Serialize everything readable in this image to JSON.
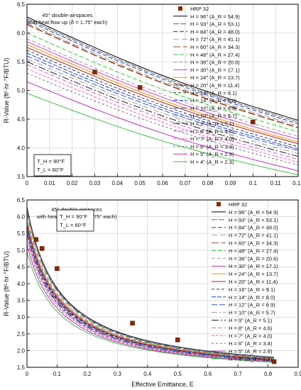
{
  "chart_data": [
    {
      "type": "line",
      "annotation": [
        "45° double-airspaces",
        "with heat flow up (δ = 1.75\" each)"
      ],
      "temps": [
        "T_H = 90°F",
        "T_L = 60°F"
      ],
      "xlabel": "",
      "ylabel": "R-Value (ft²·hr·°F/BTU)",
      "xlim": [
        0,
        0.12
      ],
      "ylim": [
        3.5,
        6.5
      ],
      "xticks": [
        "0",
        "0.01",
        "0.02",
        "0.03",
        "0.04",
        "0.05",
        "0.06",
        "0.07",
        "0.08",
        "0.09",
        "0.1",
        "0.11",
        "0.12"
      ],
      "yticks": [
        "3.5",
        "4.0",
        "4.5",
        "5.0",
        "5.5",
        "6.0",
        "6.5"
      ],
      "grid": true,
      "legend_position": "top-right",
      "legend": [
        "HRP 32",
        "H = 96\" (A_R = 54.9)",
        "H = 93\" (A_R = 53.1)",
        "H = 84\" (A_R = 48.0)",
        "H = 72\" (A_R = 41.1)",
        "H = 60\" (A_R = 34.3)",
        "H = 48\" (A_R = 27.4)",
        "H = 36\" (A_R = 20.6)",
        "H = 30\" (A_R = 17.1)",
        "H = 24\" (A_R = 13.7)",
        "H = 20\" (A_R = 11.4)",
        "H = 16\" (A_R = 9.1)",
        "H = 14\" (A_R = 8.0)",
        "H = 12\" (A_R = 6.9)",
        "H = 10\" (A_R = 5.7)",
        "H = 9\" (A_R = 5.1)",
        "H = 8\" (A_R = 4.6)",
        "H = 7\" (A_R = 4.0)",
        "H = 6\" (A_R = 3.4)",
        "H = 5\" (A_R = 2.9)",
        "H = 4\" (A_R = 2.3)"
      ],
      "markers": {
        "name": "HRP 32",
        "x": [
          0.03,
          0.05,
          0.1
        ],
        "y": [
          5.32,
          5.05,
          4.45
        ]
      },
      "series": [
        {
          "name": "H = 96\" (A_R = 54.9)",
          "color": "#000000",
          "dash": "",
          "x": [
            0,
            0.12
          ],
          "y": [
            6.28,
            4.48
          ]
        },
        {
          "name": "H = 93\" (A_R = 53.1)",
          "color": "#666666",
          "dash": "8,2",
          "x": [
            0,
            0.12
          ],
          "y": [
            6.25,
            4.45
          ]
        },
        {
          "name": "H = 84\" (A_R = 48.0)",
          "color": "#1f3fbf",
          "dash": "6,3",
          "x": [
            0,
            0.12
          ],
          "y": [
            6.22,
            4.42
          ]
        },
        {
          "name": "H = 72\" (A_R = 41.1)",
          "color": "#a0a0a0",
          "dash": "8,4",
          "x": [
            0,
            0.12
          ],
          "y": [
            6.18,
            4.38
          ]
        },
        {
          "name": "H = 60\" (A_R = 34.3)",
          "color": "#a0522d",
          "dash": "10,4",
          "x": [
            0,
            0.12
          ],
          "y": [
            6.15,
            4.35
          ]
        },
        {
          "name": "H = 48\" (A_R = 27.4)",
          "color": "#33cc33",
          "dash": "6,3",
          "x": [
            0,
            0.12
          ],
          "y": [
            6.0,
            4.28
          ]
        },
        {
          "name": "H = 36\" (A_R = 20.6)",
          "color": "#9a9a9a",
          "dash": "5,3",
          "x": [
            0,
            0.12
          ],
          "y": [
            5.9,
            4.2
          ]
        },
        {
          "name": "H = 30\" (A_R = 17.1)",
          "color": "#cc44cc",
          "dash": "",
          "x": [
            0,
            0.12
          ],
          "y": [
            5.85,
            4.15
          ]
        },
        {
          "name": "H = 24\" (A_R = 13.7)",
          "color": "#ff8c00",
          "dash": "",
          "x": [
            0,
            0.12
          ],
          "y": [
            5.8,
            4.1
          ]
        },
        {
          "name": "H = 20\" (A_R = 11.4)",
          "color": "#a52a2a",
          "dash": "",
          "x": [
            0,
            0.12
          ],
          "y": [
            5.75,
            4.07
          ]
        },
        {
          "name": "H = 16\" (A_R = 9.1)",
          "color": "#333333",
          "dash": "4,3",
          "x": [
            0,
            0.12
          ],
          "y": [
            5.7,
            4.02
          ]
        },
        {
          "name": "H = 14\" (A_R = 8.0)",
          "color": "#2244dd",
          "dash": "6,2",
          "x": [
            0,
            0.12
          ],
          "y": [
            5.65,
            3.98
          ]
        },
        {
          "name": "H = 12\" (A_R = 6.9)",
          "color": "#3355cc",
          "dash": "8,3",
          "x": [
            0,
            0.12
          ],
          "y": [
            5.6,
            3.95
          ]
        },
        {
          "name": "H = 10\" (A_R = 5.7)",
          "color": "#999999",
          "dash": "8,3,2,3",
          "x": [
            0,
            0.12
          ],
          "y": [
            5.55,
            3.9
          ]
        },
        {
          "name": "H = 9\" (A_R = 5.1)",
          "color": "#222222",
          "dash": "10,3,2,3",
          "x": [
            0,
            0.12
          ],
          "y": [
            5.5,
            3.85
          ]
        },
        {
          "name": "H = 8\" (A_R = 4.6)",
          "color": "#cc66cc",
          "dash": "6,3",
          "x": [
            0,
            0.12
          ],
          "y": [
            5.45,
            3.8
          ]
        },
        {
          "name": "H = 7\" (A_R = 4.0)",
          "color": "#ff66cc",
          "dash": "4,2",
          "x": [
            0,
            0.12
          ],
          "y": [
            5.38,
            3.75
          ]
        },
        {
          "name": "H = 6\" (A_R = 3.4)",
          "color": "#777777",
          "dash": "3,3",
          "x": [
            0,
            0.12
          ],
          "y": [
            5.3,
            3.7
          ]
        },
        {
          "name": "H = 5\" (A_R = 2.9)",
          "color": "#bb33bb",
          "dash": "",
          "x": [
            0,
            0.12
          ],
          "y": [
            5.15,
            3.6
          ]
        },
        {
          "name": "H = 4\" (A_R = 2.3)",
          "color": "#44bb44",
          "dash": "",
          "x": [
            0,
            0.12
          ],
          "y": [
            4.95,
            3.53
          ]
        }
      ]
    },
    {
      "type": "line",
      "annotation": [
        "45° double-airspaces",
        "with heat flow up (δ = 1.75\" each)"
      ],
      "temps": [
        "T_H = 90°F",
        "T_L = 60°F"
      ],
      "xlabel": "Effective Emittance, E",
      "ylabel": "R-Value (ft²·hr·°F/BTU)",
      "xlim": [
        0,
        0.9
      ],
      "ylim": [
        1.5,
        6.5
      ],
      "xticks": [
        "0",
        "0.1",
        "0.2",
        "0.3",
        "0.4",
        "0.5",
        "0.6",
        "0.7",
        "0.8",
        "0.9"
      ],
      "yticks": [
        "1.5",
        "2.0",
        "2.5",
        "3.0",
        "3.5",
        "4.0",
        "4.5",
        "5.0",
        "5.5",
        "6.0",
        "6.5"
      ],
      "grid": true,
      "legend_position": "top-right",
      "legend": [
        "HRP 32",
        "H = 96\" (A_R = 54.9)",
        "H = 93\" (A_R = 53.1)",
        "H = 84\" (A_R = 48.0)",
        "H = 72\" (A_R = 41.1)",
        "H = 60\" (A_R = 34.3)",
        "H = 48\" (A_R = 27.4)",
        "H = 36\" (A_R = 20.6)",
        "H = 30\" (A_R = 17.1)",
        "H = 24\" (A_R = 13.7)",
        "H = 20\" (A_R = 11.4)",
        "H = 16\" (A_R = 9.1)",
        "H = 14\" (A_R = 8.0)",
        "H = 12\" (A_R = 6.9)",
        "H = 10\" (A_R = 5.7)",
        "H = 9\" (A_R = 5.1)",
        "H = 8\" (A_R = 4.6)",
        "H = 7\" (A_R = 4.0)",
        "H = 6\" (A_R = 3.4)",
        "H = 5\" (A_R = 2.9)",
        "H = 4\" (A_R = 2.3)"
      ],
      "markers": {
        "name": "HRP 32",
        "x": [
          0.03,
          0.05,
          0.1,
          0.35,
          0.5,
          0.82
        ],
        "y": [
          5.32,
          5.05,
          4.45,
          2.82,
          2.32,
          1.67
        ]
      },
      "curve_ends": {
        "x_start": 0,
        "x_end": 0.82,
        "a": 0.11,
        "b": 1.64,
        "y_end": [
          1.8,
          1.65
        ]
      },
      "series": [
        {
          "name": "H = 96\" (A_R = 54.9)",
          "color": "#000000",
          "dash": "",
          "y0": 6.28
        },
        {
          "name": "H = 93\" (A_R = 53.1)",
          "color": "#666666",
          "dash": "8,2",
          "y0": 6.25
        },
        {
          "name": "H = 84\" (A_R = 48.0)",
          "color": "#1f3fbf",
          "dash": "6,3",
          "y0": 6.22
        },
        {
          "name": "H = 72\" (A_R = 41.1)",
          "color": "#a0a0a0",
          "dash": "8,4",
          "y0": 6.18
        },
        {
          "name": "H = 60\" (A_R = 34.3)",
          "color": "#a0522d",
          "dash": "10,4",
          "y0": 6.15
        },
        {
          "name": "H = 48\" (A_R = 27.4)",
          "color": "#33cc33",
          "dash": "6,3",
          "y0": 6.0
        },
        {
          "name": "H = 36\" (A_R = 20.6)",
          "color": "#9a9a9a",
          "dash": "5,3",
          "y0": 5.9
        },
        {
          "name": "H = 30\" (A_R = 17.1)",
          "color": "#cc44cc",
          "dash": "",
          "y0": 5.85
        },
        {
          "name": "H = 24\" (A_R = 13.7)",
          "color": "#ff8c00",
          "dash": "",
          "y0": 5.8
        },
        {
          "name": "H = 20\" (A_R = 11.4)",
          "color": "#a52a2a",
          "dash": "",
          "y0": 5.75
        },
        {
          "name": "H = 16\" (A_R = 9.1)",
          "color": "#333333",
          "dash": "4,3",
          "y0": 5.7
        },
        {
          "name": "H = 14\" (A_R = 8.0)",
          "color": "#2244dd",
          "dash": "6,2",
          "y0": 5.65
        },
        {
          "name": "H = 12\" (A_R = 6.9)",
          "color": "#3355cc",
          "dash": "8,3",
          "y0": 5.6
        },
        {
          "name": "H = 10\" (A_R = 5.7)",
          "color": "#999999",
          "dash": "8,3,2,3",
          "y0": 5.55
        },
        {
          "name": "H = 9\" (A_R = 5.1)",
          "color": "#222222",
          "dash": "10,3,2,3",
          "y0": 5.5
        },
        {
          "name": "H = 8\" (A_R = 4.6)",
          "color": "#cc66cc",
          "dash": "6,3",
          "y0": 5.45
        },
        {
          "name": "H = 7\" (A_R = 4.0)",
          "color": "#ff66cc",
          "dash": "4,2",
          "y0": 5.38
        },
        {
          "name": "H = 6\" (A_R = 3.4)",
          "color": "#777777",
          "dash": "3,3",
          "y0": 5.3
        },
        {
          "name": "H = 5\" (A_R = 2.9)",
          "color": "#bb33bb",
          "dash": "",
          "y0": 5.15
        },
        {
          "name": "H = 4\" (A_R = 2.3)",
          "color": "#44bb44",
          "dash": "",
          "y0": 4.95
        }
      ]
    }
  ]
}
